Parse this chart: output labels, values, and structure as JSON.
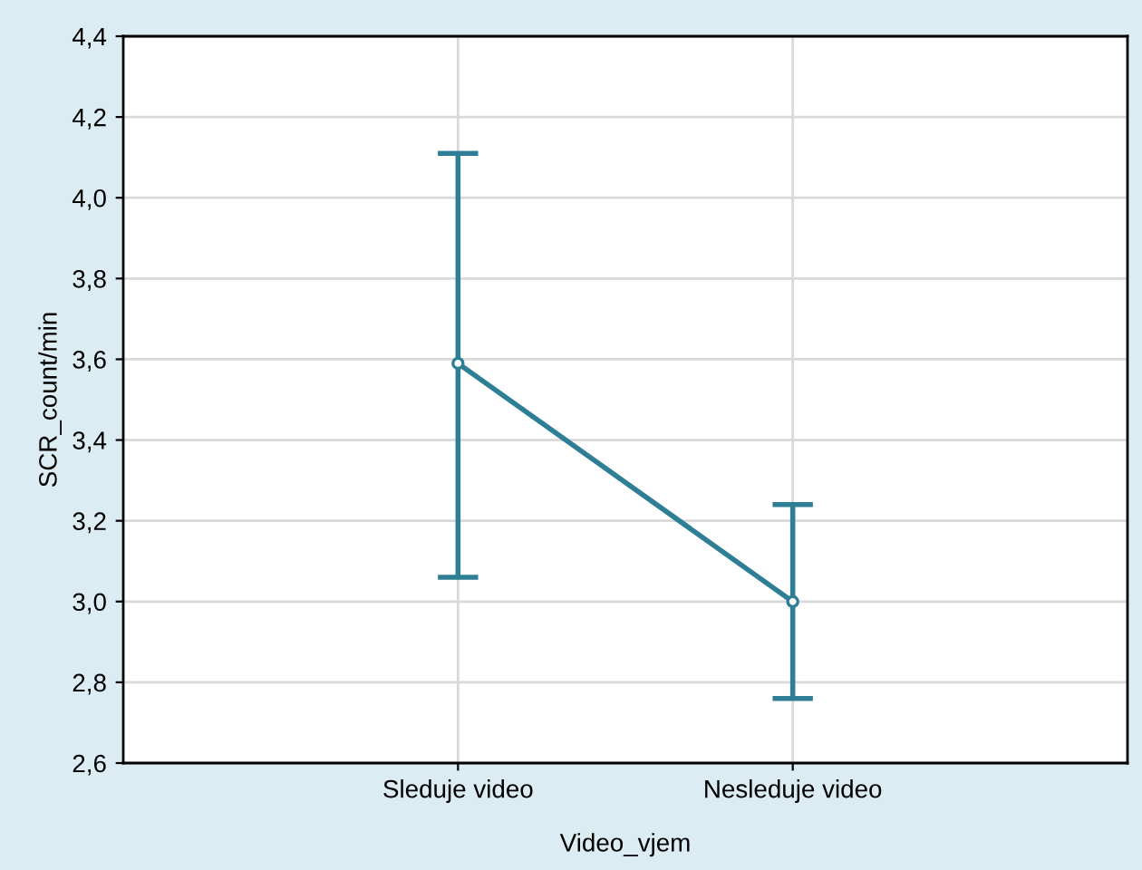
{
  "chart_data": {
    "type": "line",
    "xlabel": "Video_vjem",
    "ylabel": "SCR_count/min",
    "categories": [
      "Sleduje video",
      "Nesleduje video"
    ],
    "series": [
      {
        "color": "#2e7f96",
        "values": [
          3.59,
          3.0
        ],
        "errors": [
          [
            3.06,
            4.11
          ],
          [
            2.76,
            3.24
          ]
        ]
      }
    ],
    "ylim": [
      2.6,
      4.4
    ],
    "yticks": [
      {
        "value": 2.6,
        "label": "2,6"
      },
      {
        "value": 2.8,
        "label": "2,8"
      },
      {
        "value": 3.0,
        "label": "3,0"
      },
      {
        "value": 3.2,
        "label": "3,2"
      },
      {
        "value": 3.4,
        "label": "3,4"
      },
      {
        "value": 3.6,
        "label": "3,6"
      },
      {
        "value": 3.8,
        "label": "3,8"
      },
      {
        "value": 4.0,
        "label": "4,0"
      },
      {
        "value": 4.2,
        "label": "4,2"
      },
      {
        "value": 4.4,
        "label": "4,4"
      }
    ],
    "grid": true,
    "marker": "circle",
    "line_style": "solid"
  }
}
